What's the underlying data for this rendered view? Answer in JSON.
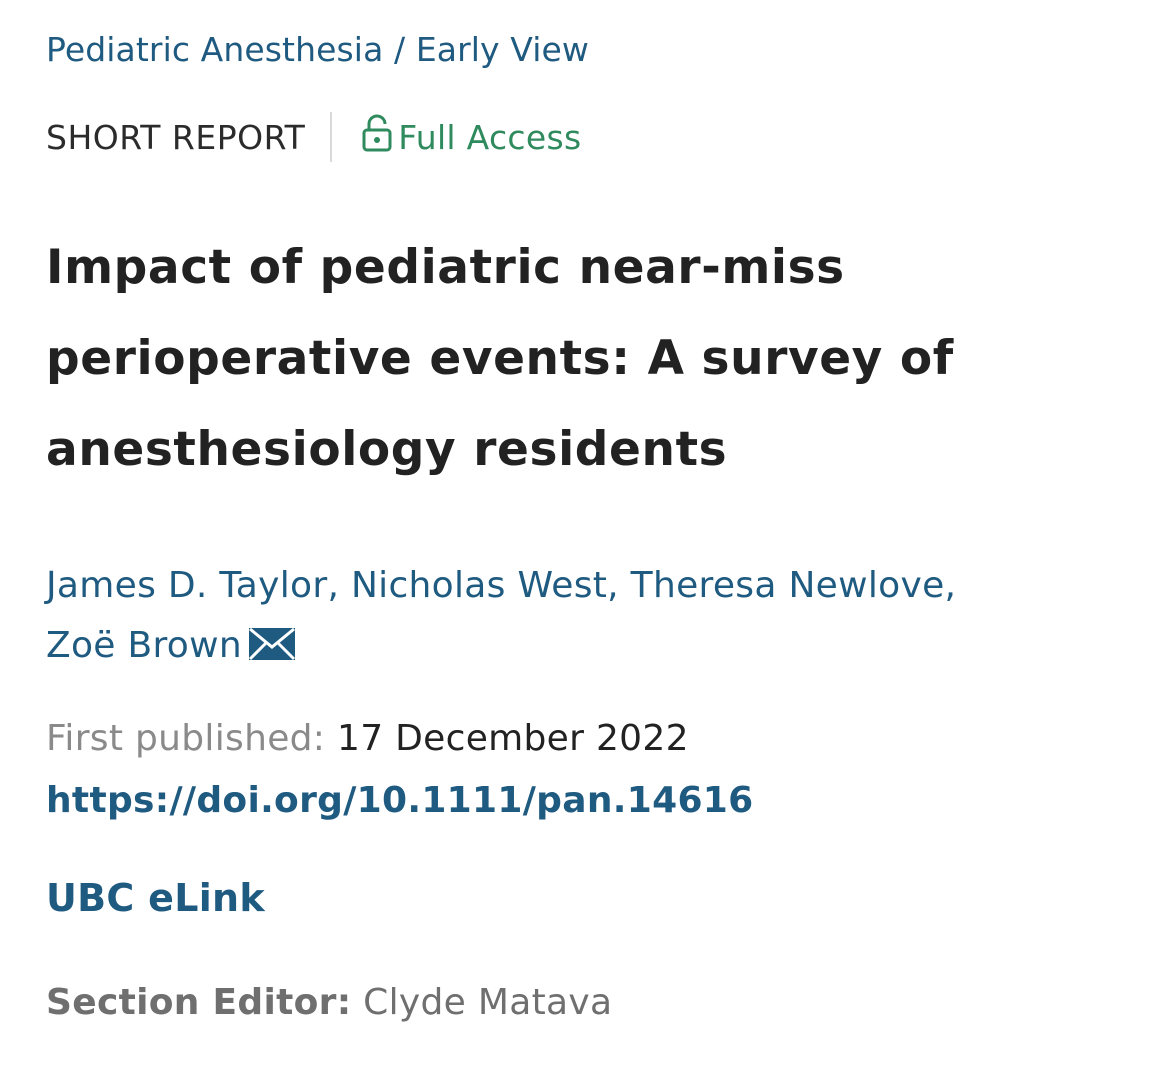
{
  "breadcrumb": {
    "journal": "Pediatric Anesthesia",
    "separator": " / ",
    "issue": "Early View"
  },
  "article": {
    "type": "SHORT REPORT",
    "access": {
      "label": "Full Access",
      "icon": "lock-open-icon",
      "color": "#2f8a5e"
    },
    "title": "Impact of pediatric near-miss perioperative events: A survey of anesthesiology residents",
    "authors": [
      {
        "name": "James D. Taylor",
        "sep": ", "
      },
      {
        "name": "Nicholas West",
        "sep": ", "
      },
      {
        "name": "Theresa Newlove",
        "sep": ", "
      },
      {
        "name": "Zoë Brown",
        "sep": ""
      }
    ],
    "corresponding_icon": "envelope-icon",
    "first_published_label": "First published: ",
    "first_published_date": "17 December 2022",
    "doi": "https://doi.org/10.1111/pan.14616",
    "elink": "UBC eLink",
    "section_editor_label": "Section Editor:",
    "section_editor_name": " Clyde Matava"
  },
  "colors": {
    "link": "#1f5a80",
    "text": "#222222",
    "muted": "#8a8a8a",
    "access": "#2f8a5e"
  }
}
